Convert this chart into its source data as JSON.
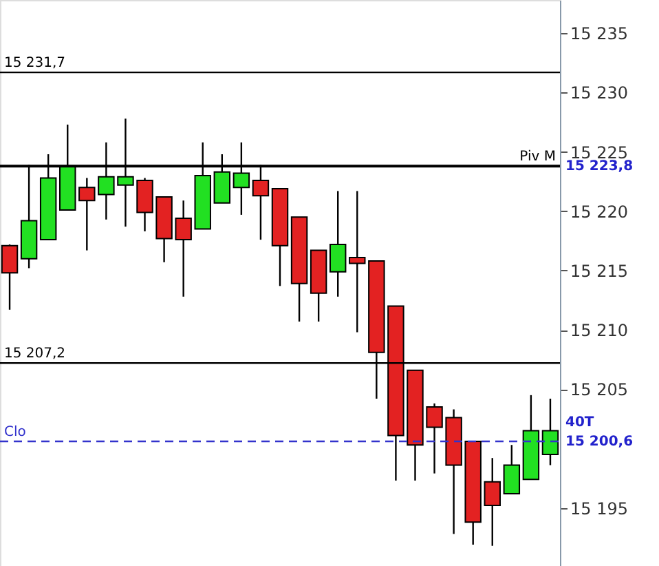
{
  "chart_data": {
    "type": "candlestick",
    "categories": [
      null,
      null,
      null,
      null,
      null,
      null,
      null,
      null,
      null,
      null,
      null,
      null,
      null,
      null,
      null,
      null,
      null,
      null,
      null,
      null,
      null,
      null,
      null,
      null,
      null,
      null,
      null,
      null,
      null
    ],
    "ohlc": [
      [
        15217.1,
        15217.2,
        15211.7,
        15214.8
      ],
      [
        15216.0,
        15223.9,
        15215.2,
        15219.2
      ],
      [
        15217.6,
        15224.8,
        15217.6,
        15222.8
      ],
      [
        15220.1,
        15227.3,
        15220.1,
        15223.8
      ],
      [
        15222.0,
        15222.8,
        15216.7,
        15220.9
      ],
      [
        15221.4,
        15225.8,
        15219.3,
        15222.9
      ],
      [
        15222.2,
        15227.8,
        15218.7,
        15222.9
      ],
      [
        15222.6,
        15222.8,
        15218.3,
        15219.9
      ],
      [
        15221.2,
        15221.2,
        15215.7,
        15217.7
      ],
      [
        15219.4,
        15220.9,
        15212.8,
        15217.6
      ],
      [
        15218.5,
        15225.8,
        15218.5,
        15223.0
      ],
      [
        15220.7,
        15224.8,
        15220.7,
        15223.3
      ],
      [
        15222.0,
        15225.8,
        15219.7,
        15223.2
      ],
      [
        15222.6,
        15223.9,
        15217.6,
        15221.3
      ],
      [
        15221.9,
        15221.9,
        15213.7,
        15217.1
      ],
      [
        15219.5,
        15219.5,
        15210.7,
        15213.9
      ],
      [
        15216.7,
        15216.7,
        15210.7,
        15213.1
      ],
      [
        15214.9,
        15221.7,
        15212.8,
        15217.2
      ],
      [
        15216.1,
        15221.7,
        15209.8,
        15215.6
      ],
      [
        15215.8,
        15215.8,
        15204.2,
        15208.1
      ],
      [
        15212.0,
        15212.0,
        15197.3,
        15201.1
      ],
      [
        15206.6,
        15206.6,
        15197.3,
        15200.3
      ],
      [
        15203.5,
        15203.8,
        15197.9,
        15201.8
      ],
      [
        15202.6,
        15203.3,
        15192.8,
        15198.6
      ],
      [
        15200.6,
        15200.6,
        15191.9,
        15193.8
      ],
      [
        15197.2,
        15199.2,
        15191.8,
        15195.2
      ],
      [
        15196.2,
        15200.3,
        15196.2,
        15198.6
      ],
      [
        15197.4,
        15204.5,
        15197.4,
        15201.5
      ],
      [
        15199.5,
        15204.2,
        15198.6,
        15201.5
      ]
    ],
    "colors": [
      "#e32222",
      "#22e022",
      "#22e022",
      "#22e022",
      "#e32222",
      "#22e022",
      "#22e022",
      "#e32222",
      "#e32222",
      "#e32222",
      "#22e022",
      "#22e022",
      "#22e022",
      "#e32222",
      "#e32222",
      "#e32222",
      "#e32222",
      "#22e022",
      "#e32222",
      "#e32222",
      "#e32222",
      "#e32222",
      "#e32222",
      "#e32222",
      "#e32222",
      "#e32222",
      "#22e022",
      "#22e022",
      "#22e022"
    ],
    "ylim": [
      15190.1,
      15237.8
    ],
    "yticks": [
      {
        "value": 15195,
        "label": "15 195"
      },
      {
        "value": 15205,
        "label": "15 205"
      },
      {
        "value": 15210,
        "label": "15 210"
      },
      {
        "value": 15215,
        "label": "15 215"
      },
      {
        "value": 15220,
        "label": "15 220"
      },
      {
        "value": 15225,
        "label": "15 225"
      },
      {
        "value": 15230,
        "label": "15 230"
      },
      {
        "value": 15235,
        "label": "15 235"
      }
    ],
    "tick_labels": "y",
    "grid": false,
    "ref_lines": [
      {
        "axis": "y",
        "value": 15231.7,
        "label": "15 231,7",
        "color": "#000000",
        "line_style": "solid"
      },
      {
        "axis": "y",
        "value": 15223.8,
        "label": "Piv M",
        "color": "#000000",
        "line_style": "solid"
      },
      {
        "axis": "y",
        "value": 15207.2,
        "label": "15 207,2",
        "color": "#000000",
        "line_style": "solid"
      },
      {
        "axis": "y",
        "value": 15200.6,
        "label": "Clo",
        "color": "#3333cc",
        "line_style": "dashed"
      }
    ],
    "annotations": [
      "15 223,8",
      "40T",
      "15 200,6"
    ]
  }
}
